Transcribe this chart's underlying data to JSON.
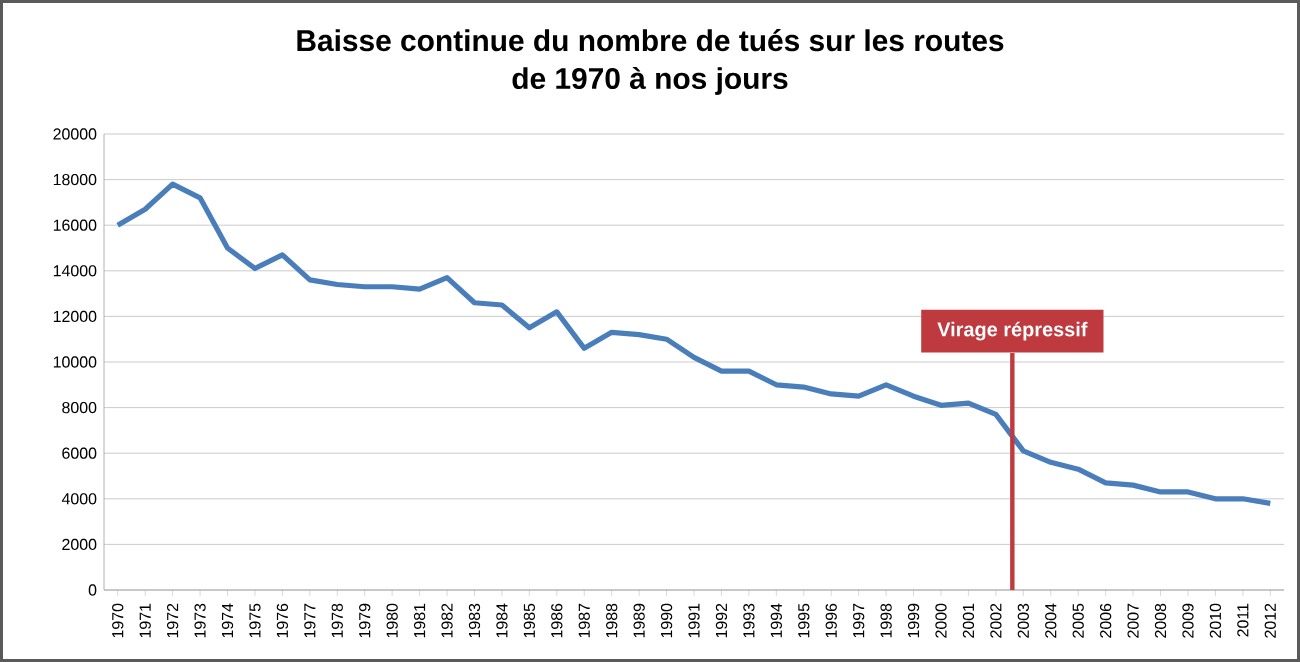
{
  "chart_data": {
    "type": "line",
    "title": "Baisse continue du nombre de tués sur les routes\nde 1970 à nos jours",
    "x": [
      1970,
      1971,
      1972,
      1973,
      1974,
      1975,
      1976,
      1977,
      1978,
      1979,
      1980,
      1981,
      1982,
      1983,
      1984,
      1985,
      1986,
      1987,
      1988,
      1989,
      1990,
      1991,
      1992,
      1993,
      1994,
      1995,
      1996,
      1997,
      1998,
      1999,
      2000,
      2001,
      2002,
      2003,
      2004,
      2005,
      2006,
      2007,
      2008,
      2009,
      2010,
      2011,
      2012
    ],
    "series": [
      {
        "color": "#4a7ebb",
        "values": [
          16000,
          16700,
          17800,
          17200,
          15000,
          14100,
          14700,
          13600,
          13400,
          13300,
          13300,
          13200,
          13700,
          12600,
          12500,
          11500,
          12200,
          10600,
          11300,
          11200,
          11000,
          10200,
          9600,
          9600,
          9000,
          8900,
          8600,
          8500,
          9000,
          8500,
          8100,
          8200,
          7700,
          6100,
          5600,
          5300,
          4700,
          4600,
          4300,
          4300,
          4000,
          4000,
          3800
        ]
      }
    ],
    "xlim": [
      1969.5,
      2012.5
    ],
    "xticks": [
      1970,
      1971,
      1972,
      1973,
      1974,
      1975,
      1976,
      1977,
      1978,
      1979,
      1980,
      1981,
      1982,
      1983,
      1984,
      1985,
      1986,
      1987,
      1988,
      1989,
      1990,
      1991,
      1992,
      1993,
      1994,
      1995,
      1996,
      1997,
      1998,
      1999,
      2000,
      2001,
      2002,
      2003,
      2004,
      2005,
      2006,
      2007,
      2008,
      2009,
      2010,
      2011,
      2012
    ],
    "ylim": [
      0,
      20000
    ],
    "yticks": [
      0,
      2000,
      4000,
      6000,
      8000,
      10000,
      12000,
      14000,
      16000,
      18000,
      20000
    ],
    "grid": "y",
    "marker": "none",
    "line_style": "solid",
    "ref_lines": [
      {
        "axis": "x",
        "value": 2002.6,
        "label": "Virage répressif",
        "color": "#be3a3e"
      }
    ]
  }
}
